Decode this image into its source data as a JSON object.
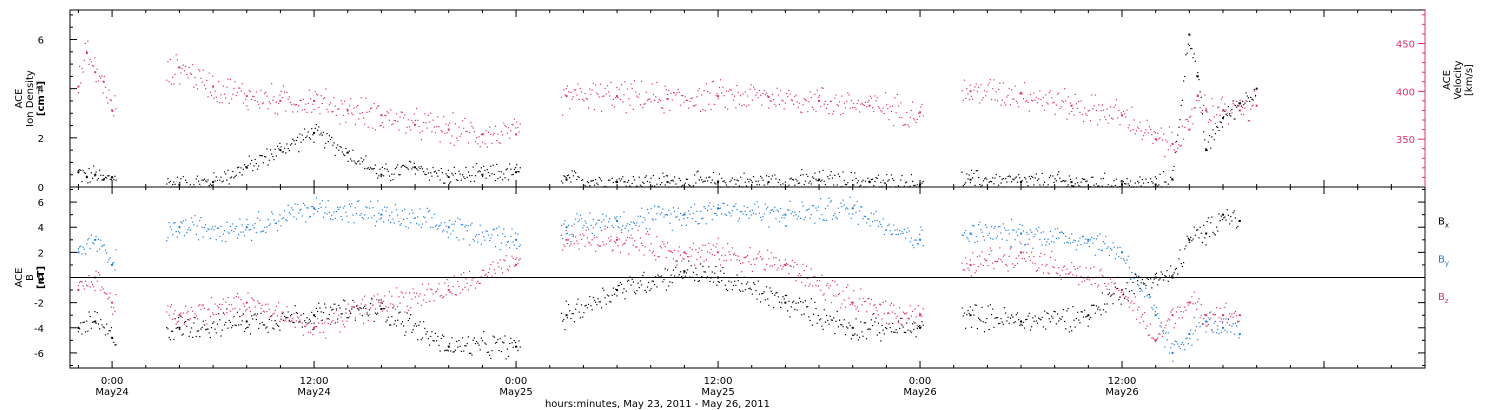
{
  "chart_data": [
    {
      "type": "scatter",
      "title": "",
      "ylabel_lines": [
        "ACE",
        "Ion Density",
        "[cm⁻³]"
      ],
      "y2label_lines": [
        "ACE",
        "Velocity",
        "[km/s]"
      ],
      "ylim": [
        0,
        7.2
      ],
      "yticks": [
        0,
        2,
        4,
        6
      ],
      "y2lim": [
        300,
        485
      ],
      "y2ticks": [
        350,
        400,
        450
      ],
      "y2_unit": "km/s",
      "x_hours_range": [
        -2.5,
        78
      ],
      "data_gaps_hours": [
        [
          0.3,
          3.2
        ],
        [
          24.3,
          26.7
        ],
        [
          48.2,
          50.5
        ]
      ],
      "series": [
        {
          "name": "",
          "axis": "left",
          "color": "#000000",
          "x": [
            -2,
            -1.5,
            -1,
            -0.5,
            0,
            4,
            6,
            8,
            10,
            12,
            14,
            16,
            18,
            20,
            22,
            24,
            27,
            30,
            33,
            36,
            39,
            42,
            45,
            48,
            51,
            54,
            57,
            60,
            62,
            63,
            64,
            64.5,
            65,
            66,
            67,
            68
          ],
          "values": [
            0.6,
            0.4,
            0.5,
            0.3,
            0.4,
            0.1,
            0.2,
            0.8,
            1.5,
            2.2,
            1.4,
            0.5,
            0.8,
            0.4,
            0.5,
            0.6,
            0.3,
            0.2,
            0.2,
            0.2,
            0.2,
            0.3,
            0.2,
            0.1,
            0.3,
            0.2,
            0.2,
            0.1,
            0.1,
            0.3,
            6.2,
            4.5,
            1.5,
            2.8,
            3.4,
            4.0
          ]
        },
        {
          "name": "",
          "axis": "right",
          "color": "#e0306a",
          "x": [
            -2,
            -1.5,
            -1,
            -0.5,
            0,
            4,
            6,
            8,
            10,
            12,
            14,
            16,
            18,
            20,
            22,
            24,
            27,
            30,
            33,
            36,
            39,
            42,
            45,
            48,
            51,
            54,
            57,
            60,
            62,
            63,
            64,
            64.5,
            65,
            66,
            67,
            68
          ],
          "values": [
            405,
            440,
            420,
            410,
            380,
            425,
            405,
            395,
            390,
            390,
            380,
            375,
            365,
            360,
            355,
            355,
            395,
            395,
            392,
            395,
            394,
            390,
            385,
            378,
            400,
            398,
            385,
            375,
            350,
            345,
            360,
            395,
            380,
            380,
            380,
            385
          ]
        }
      ]
    },
    {
      "type": "scatter",
      "title": "",
      "ylabel_lines": [
        "ACE",
        "B",
        "[nT]"
      ],
      "ylim": [
        -7.2,
        7.2
      ],
      "yticks": [
        -6,
        -4,
        -2,
        0,
        2,
        4,
        6
      ],
      "zero_line": true,
      "xticks": [
        {
          "hours": 0,
          "top": "0:00",
          "bottom": "May24"
        },
        {
          "hours": 12,
          "top": "12:00",
          "bottom": "May24"
        },
        {
          "hours": 24,
          "top": "0:00",
          "bottom": "May25"
        },
        {
          "hours": 36,
          "top": "12:00",
          "bottom": "May25"
        },
        {
          "hours": 48,
          "top": "0:00",
          "bottom": "May26"
        },
        {
          "hours": 60,
          "top": "12:00",
          "bottom": "May26"
        }
      ],
      "xlabel": "hours:minutes, May 23, 2011 - May 26, 2011",
      "legend_placement": "right",
      "series": [
        {
          "name": "Bx",
          "legend_base": "B",
          "legend_sub": "x",
          "color": "#000000",
          "x": [
            -2,
            -1,
            0,
            4,
            8,
            12,
            16,
            20,
            24,
            27,
            30,
            34,
            36,
            40,
            44,
            48,
            51,
            54,
            58,
            60,
            62,
            63,
            64,
            65,
            66,
            67
          ],
          "values": [
            -4,
            -3.5,
            -4.8,
            -4,
            -3.5,
            -3,
            -2.5,
            -5.5,
            -5.5,
            -3,
            -1,
            0.5,
            0,
            -2,
            -4,
            -4,
            -3,
            -3.5,
            -3,
            -1,
            0,
            0,
            3,
            3.5,
            5,
            4.5
          ]
        },
        {
          "name": "By",
          "legend_base": "B",
          "legend_sub": "y",
          "color": "#1e7ee0",
          "x": [
            -2,
            -1,
            0,
            4,
            8,
            12,
            16,
            20,
            24,
            27,
            30,
            34,
            36,
            40,
            44,
            48,
            51,
            54,
            58,
            60,
            62,
            63,
            64,
            65,
            66,
            67
          ],
          "values": [
            2,
            3,
            1,
            4,
            4,
            5.5,
            5,
            4,
            3,
            4,
            4.5,
            5,
            5.5,
            5,
            5.5,
            3,
            3.5,
            3.5,
            3,
            2,
            -3,
            -6,
            -4.5,
            -3.5,
            -4,
            -4.5
          ]
        },
        {
          "name": "Bz",
          "legend_base": "B",
          "legend_sub": "z",
          "color": "#e0306a",
          "x": [
            -2,
            -1,
            0,
            4,
            8,
            12,
            16,
            20,
            24,
            27,
            30,
            34,
            36,
            40,
            44,
            48,
            51,
            54,
            58,
            60,
            62,
            63,
            64,
            65,
            66,
            67
          ],
          "values": [
            -1,
            0,
            -2,
            -3,
            -2,
            -4,
            -2,
            -1,
            1,
            3,
            3,
            2,
            2,
            1,
            -2,
            -3,
            1,
            2,
            0,
            -1,
            -5,
            -3,
            -2,
            -3,
            -3,
            -3
          ]
        }
      ]
    }
  ]
}
